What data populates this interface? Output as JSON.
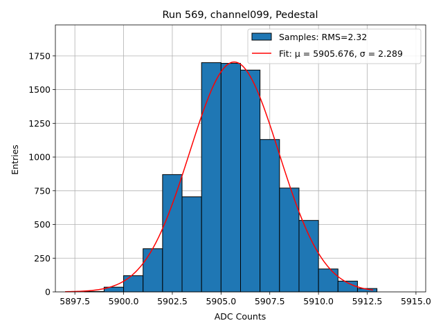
{
  "chart_data": {
    "type": "bar",
    "title": "Run 569, channel099, Pedestal",
    "xlabel": "ADC Counts",
    "ylabel": "Entries",
    "xlim": [
      5896.5,
      5915.5
    ],
    "ylim": [
      0,
      1980
    ],
    "grid": true,
    "legend_position": "top-right",
    "x_ticks": [
      5897.5,
      5900.0,
      5902.5,
      5905.0,
      5907.5,
      5910.0,
      5912.5,
      5915.0
    ],
    "x_tick_labels": [
      "5897.5",
      "5900.0",
      "5902.5",
      "5905.0",
      "5907.5",
      "5910.0",
      "5912.5",
      "5915.0"
    ],
    "y_ticks": [
      0,
      250,
      500,
      750,
      1000,
      1250,
      1500,
      1750
    ],
    "y_tick_labels": [
      "0",
      "250",
      "500",
      "750",
      "1000",
      "1250",
      "1500",
      "1750"
    ],
    "bins": [
      {
        "left": 5898,
        "right": 5899,
        "count": 3
      },
      {
        "left": 5899,
        "right": 5900,
        "count": 35
      },
      {
        "left": 5900,
        "right": 5901,
        "count": 120
      },
      {
        "left": 5901,
        "right": 5902,
        "count": 320
      },
      {
        "left": 5902,
        "right": 5903,
        "count": 870
      },
      {
        "left": 5903,
        "right": 5904,
        "count": 705
      },
      {
        "left": 5904,
        "right": 5905,
        "count": 1700
      },
      {
        "left": 5905,
        "right": 5906,
        "count": 1695
      },
      {
        "left": 5906,
        "right": 5907,
        "count": 1645
      },
      {
        "left": 5907,
        "right": 5908,
        "count": 1130
      },
      {
        "left": 5908,
        "right": 5909,
        "count": 770
      },
      {
        "left": 5909,
        "right": 5910,
        "count": 530
      },
      {
        "left": 5910,
        "right": 5911,
        "count": 170
      },
      {
        "left": 5911,
        "right": 5912,
        "count": 80
      },
      {
        "left": 5912,
        "right": 5913,
        "count": 25
      }
    ],
    "series": [
      {
        "name": "Samples: RMS=2.32",
        "kind": "histogram",
        "color": "#1f77b4"
      },
      {
        "name": "Fit: μ = 5905.676, σ = 2.289",
        "kind": "gaussian-fit",
        "color": "#ff0000",
        "mu": 5905.676,
        "sigma": 2.289,
        "amplitude": 1705,
        "x_range": [
          5897.0,
          5912.8
        ]
      }
    ]
  }
}
